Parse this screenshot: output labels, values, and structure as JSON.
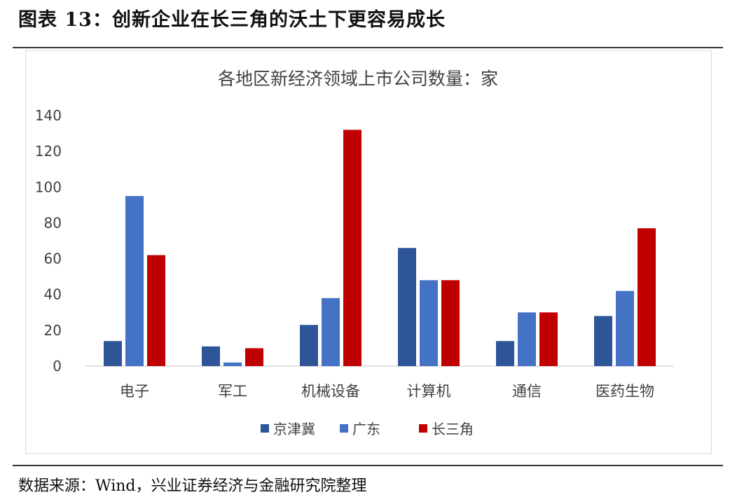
{
  "figure": {
    "title": "图表 13：创新企业在长三角的沃土下更容易成长",
    "source": "数据来源：Wind，兴业证券经济与金融研究院整理"
  },
  "chart_data": {
    "type": "bar",
    "title": "各地区新经济领域上市公司数量：家",
    "xlabel": "",
    "ylabel": "",
    "ylim": [
      0,
      140
    ],
    "yticks": [
      0,
      20,
      40,
      60,
      80,
      100,
      120,
      140
    ],
    "categories": [
      "电子",
      "军工",
      "机械设备",
      "计算机",
      "通信",
      "医药生物"
    ],
    "series": [
      {
        "name": "京津冀",
        "color": "#2e5597",
        "values": [
          14,
          11,
          23,
          66,
          14,
          28
        ]
      },
      {
        "name": "广东",
        "color": "#4472c4",
        "values": [
          95,
          2,
          38,
          48,
          30,
          42
        ]
      },
      {
        "name": "长三角",
        "color": "#c00000",
        "values": [
          62,
          10,
          132,
          48,
          30,
          77
        ]
      }
    ],
    "grid": false,
    "legend_position": "bottom"
  }
}
